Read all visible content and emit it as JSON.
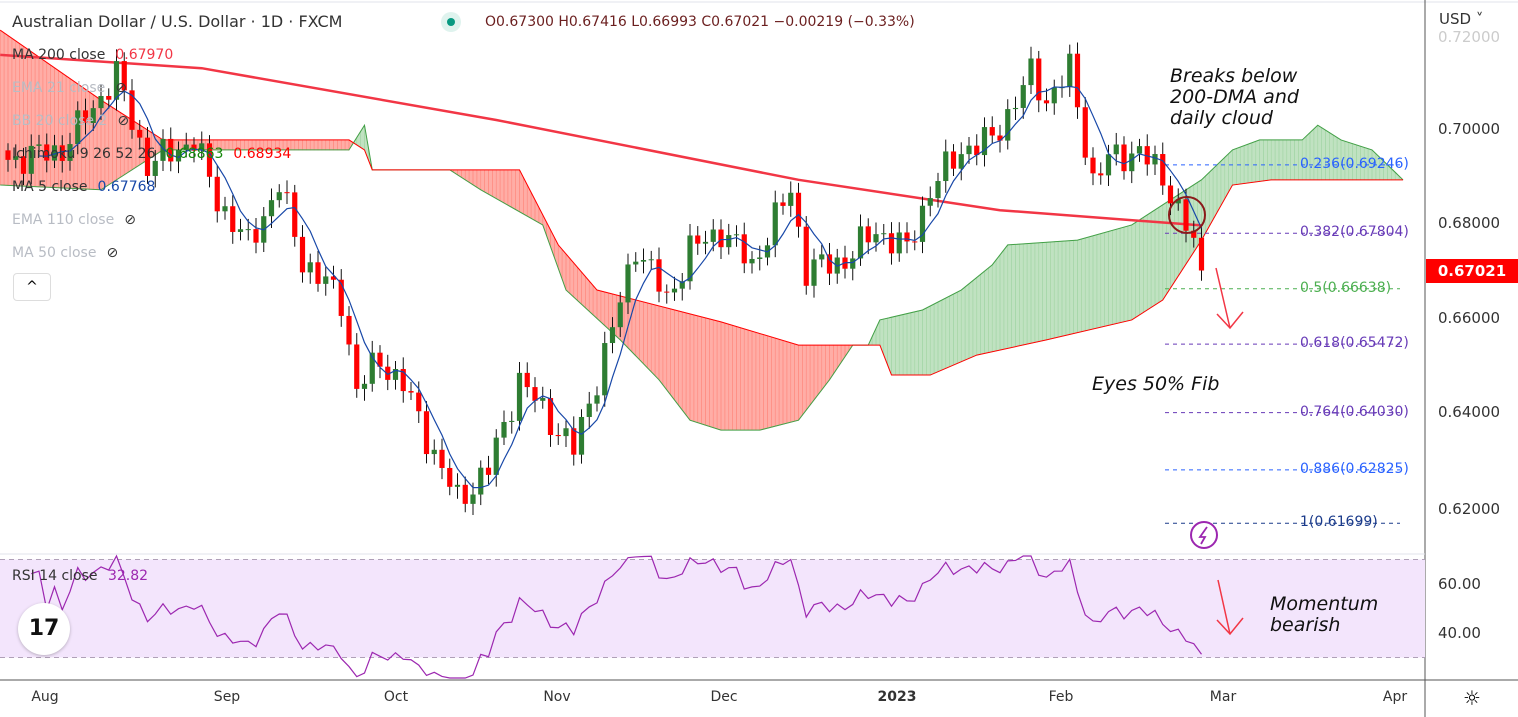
{
  "header": {
    "title": "Australian Dollar / U.S. Dollar · 1D · FXCM",
    "ohlc": "O0.67300 H0.67416 L0.66993 C0.67021 −0.00219 (−0.33%)",
    "currency": "USD ˅"
  },
  "legend": [
    {
      "label": "MA 200 close",
      "value": "0.67970",
      "color": "#f23645",
      "hidden": false
    },
    {
      "label": "EMA 21 close",
      "value": "",
      "hidden": true
    },
    {
      "label": "BB 20 close 2",
      "value": "",
      "hidden": true
    },
    {
      "label": "Ichimoku 9 26 52 26",
      "value": "0.68863",
      "value2": "0.68934",
      "color": "#138808",
      "color2": "#f00",
      "hidden": false
    },
    {
      "label": "MA 5 close",
      "value": "0.67768",
      "color": "#1848a8",
      "hidden": false
    },
    {
      "label": "EMA 110 close",
      "value": "",
      "hidden": true
    },
    {
      "label": "MA 50 close",
      "value": "",
      "hidden": true
    }
  ],
  "collapse_icon": "^",
  "rsi": {
    "label": "RSI 14 close",
    "value": "32.82"
  },
  "price_axis": [
    "0.72000",
    "0.70000",
    "0.68000",
    "0.66000",
    "0.64000",
    "0.62000"
  ],
  "rsi_axis": [
    "60.00",
    "40.00"
  ],
  "current_price": "0.67021",
  "time_axis": [
    "Aug",
    "Sep",
    "Oct",
    "Nov",
    "Dec",
    "2023",
    "Feb",
    "Mar",
    "Apr"
  ],
  "annotations": {
    "a1": "Breaks below",
    "a2": "200-DMA and",
    "a3": "daily cloud",
    "b1": "Eyes 50% Fib",
    "c1": "Momentum",
    "c2": "bearish"
  },
  "logo": "17",
  "colors": {
    "up": "#2e7d32",
    "down": "#f00",
    "ma200": "#f23645",
    "ma5": "#1848a8",
    "cloud_green": "#a5d6a7",
    "cloud_red": "#ff8a80",
    "rsi": "#9c27b0"
  },
  "chart_data": {
    "type": "candlestick",
    "title": "Australian Dollar / U.S. Dollar · 1D · FXCM",
    "ylim": [
      0.612,
      0.724
    ],
    "last_close": 0.67021,
    "close_waypoints": [
      [
        0,
        0.6935
      ],
      [
        7,
        0.6956
      ],
      [
        14,
        0.7114
      ],
      [
        18,
        0.6924
      ],
      [
        24,
        0.6977
      ],
      [
        27,
        0.6851
      ],
      [
        31,
        0.6756
      ],
      [
        35,
        0.6882
      ],
      [
        38,
        0.6724
      ],
      [
        43,
        0.664
      ],
      [
        45,
        0.6451
      ],
      [
        48,
        0.6514
      ],
      [
        51,
        0.6461
      ],
      [
        56,
        0.6282
      ],
      [
        58,
        0.6219
      ],
      [
        62,
        0.6282
      ],
      [
        66,
        0.6472
      ],
      [
        69,
        0.6408
      ],
      [
        73,
        0.6324
      ],
      [
        78,
        0.6577
      ],
      [
        81,
        0.6756
      ],
      [
        85,
        0.664
      ],
      [
        88,
        0.6745
      ],
      [
        92,
        0.6787
      ],
      [
        96,
        0.6714
      ],
      [
        101,
        0.6872
      ],
      [
        103,
        0.6703
      ],
      [
        108,
        0.6724
      ],
      [
        112,
        0.6787
      ],
      [
        116,
        0.6745
      ],
      [
        119,
        0.6872
      ],
      [
        123,
        0.6956
      ],
      [
        127,
        0.6977
      ],
      [
        132,
        0.7114
      ],
      [
        134,
        0.7061
      ],
      [
        137,
        0.7124
      ],
      [
        140,
        0.6893
      ],
      [
        142,
        0.6935
      ],
      [
        146,
        0.6956
      ],
      [
        150,
        0.6872
      ],
      [
        153,
        0.6756
      ],
      [
        154,
        0.67021
      ]
    ],
    "ma200": [
      [
        -1,
        0.7156
      ],
      [
        25,
        0.7128
      ],
      [
        63,
        0.7019
      ],
      [
        102,
        0.6893
      ],
      [
        128,
        0.6829
      ],
      [
        154,
        0.6797
      ]
    ],
    "span_a": [
      [
        -1,
        0.6882
      ],
      [
        12,
        0.6872
      ],
      [
        20,
        0.6956
      ],
      [
        44,
        0.6956
      ],
      [
        46,
        0.7008
      ],
      [
        47,
        0.6914
      ],
      [
        57,
        0.6914
      ],
      [
        61,
        0.6872
      ],
      [
        69,
        0.6798
      ],
      [
        72,
        0.6661
      ],
      [
        79,
        0.6556
      ],
      [
        84,
        0.6472
      ],
      [
        88,
        0.6387
      ],
      [
        92,
        0.6366
      ],
      [
        97,
        0.6366
      ],
      [
        102,
        0.6387
      ],
      [
        106,
        0.6472
      ],
      [
        109,
        0.6545
      ],
      [
        111,
        0.6545
      ],
      [
        112.5,
        0.6598
      ],
      [
        118,
        0.6619
      ],
      [
        123,
        0.6661
      ],
      [
        127,
        0.6714
      ],
      [
        129,
        0.6756
      ],
      [
        138,
        0.6766
      ],
      [
        145,
        0.6798
      ],
      [
        150,
        0.6851
      ],
      [
        154,
        0.6893
      ],
      [
        158,
        0.6956
      ],
      [
        161.5,
        0.6977
      ],
      [
        167,
        0.6977
      ],
      [
        169,
        0.7008
      ],
      [
        172,
        0.6977
      ],
      [
        176,
        0.6956
      ],
      [
        180,
        0.6893
      ]
    ],
    "span_b": [
      [
        -1,
        0.7208
      ],
      [
        12,
        0.7061
      ],
      [
        20,
        0.6977
      ],
      [
        44,
        0.6977
      ],
      [
        46,
        0.6956
      ],
      [
        47,
        0.6914
      ],
      [
        66,
        0.6914
      ],
      [
        71,
        0.6756
      ],
      [
        76,
        0.6661
      ],
      [
        92,
        0.6594
      ],
      [
        102,
        0.6545
      ],
      [
        112.5,
        0.6545
      ],
      [
        114,
        0.6482
      ],
      [
        119,
        0.6482
      ],
      [
        125,
        0.6524
      ],
      [
        134,
        0.6556
      ],
      [
        145,
        0.6598
      ],
      [
        149,
        0.664
      ],
      [
        154,
        0.6766
      ],
      [
        158,
        0.6882
      ],
      [
        163,
        0.6893
      ],
      [
        180,
        0.6893
      ]
    ],
    "fib": [
      {
        "label": "0.236(0.69246)",
        "level": 0.69246,
        "color": "#2962ff"
      },
      {
        "label": "0.382(0.67804)",
        "level": 0.67804,
        "color": "#673ab7"
      },
      {
        "label": "0.5(0.66638)",
        "level": 0.66638,
        "color": "#4caf50"
      },
      {
        "label": "0.618(0.65472)",
        "level": 0.65472,
        "color": "#673ab7"
      },
      {
        "label": "0.764(0.64030)",
        "level": 0.6403,
        "color": "#673ab7"
      },
      {
        "label": "0.886(0.62825)",
        "level": 0.62825,
        "color": "#2962ff"
      },
      {
        "label": "1(0.61699)",
        "level": 0.61699,
        "color": "#1a3a8a"
      }
    ],
    "rsi_bands": [
      70,
      30
    ]
  }
}
